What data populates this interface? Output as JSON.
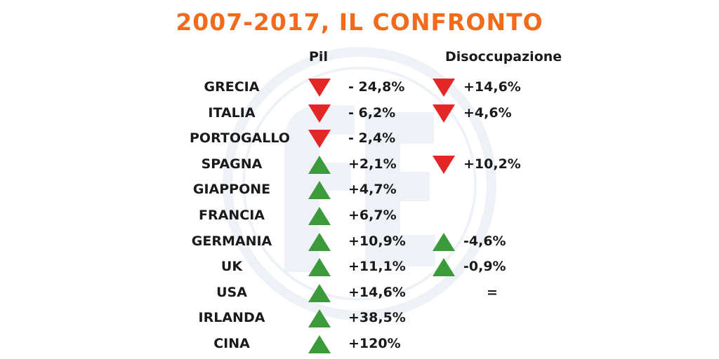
{
  "title": "2007-2017, IL CONFRONTO",
  "chart_data": {
    "type": "table",
    "columns": [
      "Pil",
      "Disoccupazione"
    ],
    "colors": {
      "up": "#3b9b3b",
      "down": "#e32626",
      "title": "#f26a1b",
      "watermark": "#eef1f6"
    },
    "rows": [
      {
        "country": "GRECIA",
        "pil": "- 24,8%",
        "pil_trend": "down",
        "dis": "+14,6%",
        "dis_trend": "down"
      },
      {
        "country": "ITALIA",
        "pil": "- 6,2%",
        "pil_trend": "down",
        "dis": "+4,6%",
        "dis_trend": "down"
      },
      {
        "country": "PORTOGALLO",
        "pil": "- 2,4%",
        "pil_trend": "down",
        "dis": "",
        "dis_trend": ""
      },
      {
        "country": "SPAGNA",
        "pil": "+2,1%",
        "pil_trend": "up",
        "dis": "+10,2%",
        "dis_trend": "down"
      },
      {
        "country": "GIAPPONE",
        "pil": "+4,7%",
        "pil_trend": "up",
        "dis": "",
        "dis_trend": ""
      },
      {
        "country": "FRANCIA",
        "pil": "+6,7%",
        "pil_trend": "up",
        "dis": "",
        "dis_trend": ""
      },
      {
        "country": "GERMANIA",
        "pil": "+10,9%",
        "pil_trend": "up",
        "dis": "-4,6%",
        "dis_trend": "up"
      },
      {
        "country": "UK",
        "pil": "+11,1%",
        "pil_trend": "up",
        "dis": "-0,9%",
        "dis_trend": "up"
      },
      {
        "country": "USA",
        "pil": "+14,6%",
        "pil_trend": "up",
        "dis": "=",
        "dis_trend": ""
      },
      {
        "country": "IRLANDA",
        "pil": "+38,5%",
        "pil_trend": "up",
        "dis": "",
        "dis_trend": ""
      },
      {
        "country": "CINA",
        "pil": "+120%",
        "pil_trend": "up",
        "dis": "",
        "dis_trend": ""
      }
    ]
  }
}
